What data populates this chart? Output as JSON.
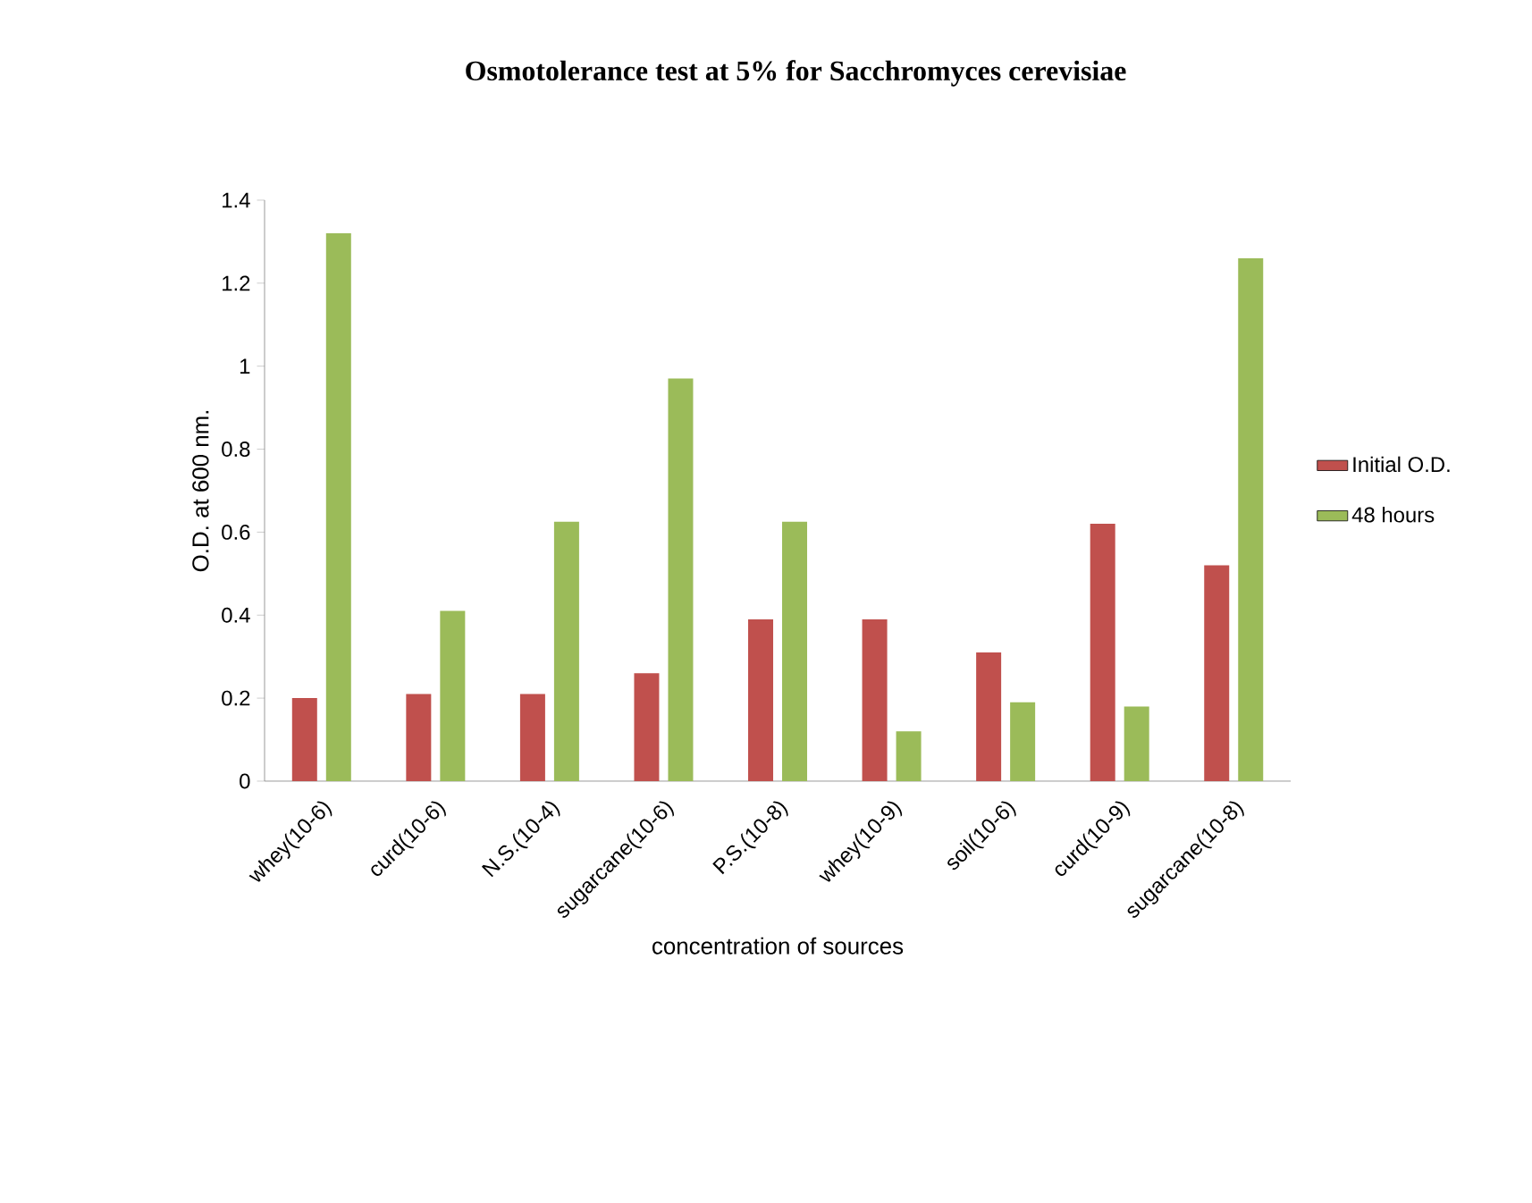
{
  "chart_data": {
    "type": "bar",
    "title": "Osmotolerance test at 5% for Sacchromyces cerevisiae",
    "xlabel": "concentration of sources",
    "ylabel": "O.D. at 600 nm.",
    "categories": [
      "whey(10-6)",
      "curd(10-6)",
      "N.S.(10-4)",
      "sugarcane(10-6)",
      "P.S.(10-8)",
      "whey(10-9)",
      "soil(10-6)",
      "curd(10-9)",
      "sugarcane(10-8)"
    ],
    "series": [
      {
        "name": "Initial O.D.",
        "color": "#c0504d",
        "values": [
          0.2,
          0.21,
          0.21,
          0.26,
          0.39,
          0.39,
          0.31,
          0.62,
          0.52
        ]
      },
      {
        "name": "48 hours",
        "color": "#9bbb59",
        "values": [
          1.32,
          0.41,
          0.625,
          0.97,
          0.625,
          0.12,
          0.19,
          0.18,
          1.26
        ]
      }
    ],
    "ylim": [
      0,
      1.4
    ],
    "yticks": [
      0,
      0.2,
      0.4,
      0.6,
      0.8,
      1,
      1.2,
      1.4
    ],
    "legend": "right"
  }
}
